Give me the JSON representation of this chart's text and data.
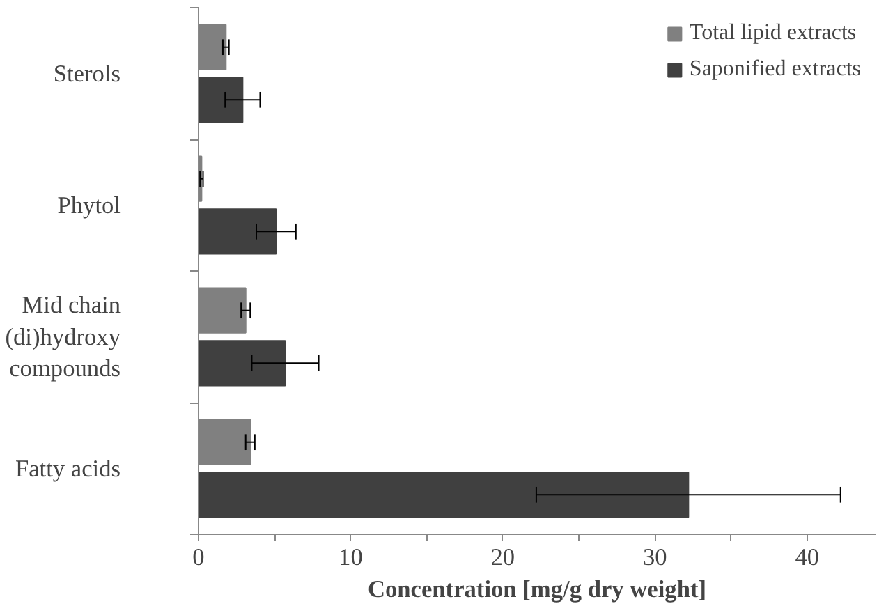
{
  "chart_data": {
    "type": "bar",
    "orientation": "horizontal",
    "xlabel": "Concentration [mg/g dry weight]",
    "categories": [
      "Sterols",
      "Phytol",
      "Mid chain (di)hydroxy compounds",
      "Fatty acids"
    ],
    "series": [
      {
        "name": "Total lipid extracts",
        "color": "#808080",
        "values": [
          1.8,
          0.2,
          3.1,
          3.4
        ],
        "errors": [
          0.2,
          0.1,
          0.3,
          0.3
        ]
      },
      {
        "name": "Saponified extracts",
        "color": "#404040",
        "values": [
          2.9,
          5.1,
          5.7,
          32.2
        ],
        "errors": [
          1.15,
          1.3,
          2.2,
          10.0
        ]
      }
    ],
    "xlim": [
      0,
      44.5
    ],
    "xticks": [
      0,
      {
        "value": 5,
        "label": null
      },
      10,
      {
        "value": 15,
        "label": null
      },
      20,
      {
        "value": 25,
        "label": null
      },
      30,
      {
        "value": 35,
        "label": null
      },
      40
    ],
    "grid": false,
    "legend": "top right"
  }
}
